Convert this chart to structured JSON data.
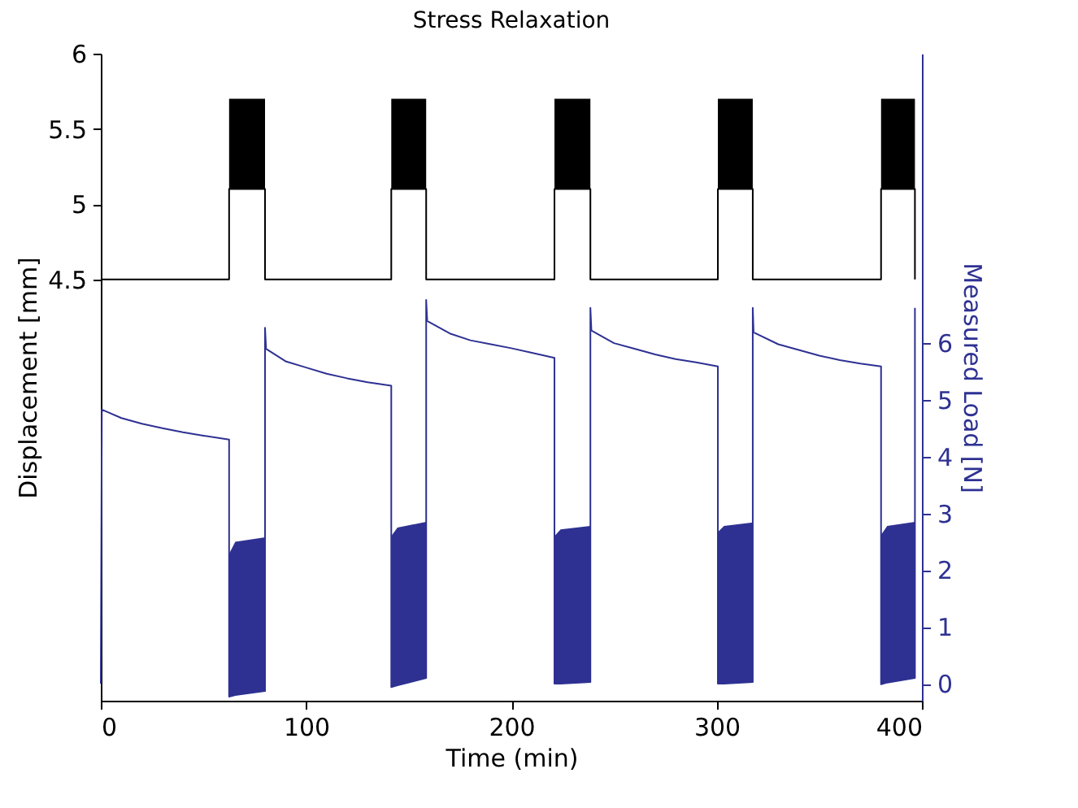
{
  "chart_data": {
    "type": "line",
    "title": "Stress Relaxation",
    "xlabel": "Time (min)",
    "ylabel": "Displacement [mm]",
    "y2label": "Measured Load [N]",
    "xlim": [
      0,
      400
    ],
    "xticks": [
      0,
      100,
      200,
      300,
      400
    ],
    "ylim": [
      1.7,
      6
    ],
    "yticks": [
      4.5,
      5,
      5.5,
      6
    ],
    "y2lim": [
      -0.3,
      11.1
    ],
    "y2ticks": [
      0,
      1,
      2,
      3,
      4,
      5,
      6
    ],
    "grid": false,
    "series": [
      {
        "color": "#000000",
        "x": [
          0,
          62.5,
          62.5,
          80,
          80,
          141.5,
          141.5,
          158.5,
          158.5,
          221,
          221,
          238.5,
          238.5,
          300.6,
          300.6,
          317.6,
          317.6,
          380.1,
          380.1,
          396.6,
          396.6
        ],
        "values": [
          4.5,
          4.5,
          5.1,
          5.1,
          4.5,
          4.5,
          5.1,
          5.1,
          4.5,
          4.5,
          5.1,
          5.1,
          4.5,
          4.5,
          5.1,
          5.1,
          4.5,
          4.5,
          5.1,
          5.1,
          4.5
        ],
        "lower": [
          null,
          null,
          5.1,
          5.1,
          null,
          null,
          5.1,
          5.1,
          null,
          null,
          5.1,
          5.1,
          null,
          null,
          5.1,
          5.1,
          null,
          null,
          5.1,
          5.1,
          null
        ],
        "upper": [
          null,
          null,
          5.7,
          5.7,
          null,
          null,
          5.7,
          5.7,
          null,
          null,
          5.7,
          5.7,
          null,
          null,
          5.7,
          5.7,
          null,
          null,
          5.7,
          5.7,
          null
        ]
      },
      {
        "color": "#2e3192",
        "axis": "y2",
        "x": [
          0,
          0.5,
          10,
          20,
          30,
          40,
          50,
          62.5,
          62.5,
          65.5,
          80,
          80,
          80.5,
          90,
          100,
          110,
          120,
          130,
          141.5,
          141.5,
          144.5,
          158.5,
          158.5,
          159,
          170,
          180,
          190,
          200,
          210,
          221,
          221,
          224,
          238.5,
          238.5,
          239,
          250,
          260,
          270,
          280,
          290,
          300.6,
          300.6,
          303.6,
          317.6,
          317.6,
          318,
          330,
          340,
          350,
          360,
          370,
          380.1,
          380.1,
          383.1,
          396.6,
          396.6
        ],
        "values": [
          0,
          4.83,
          4.68,
          4.58,
          4.5,
          4.43,
          4.37,
          4.3,
          -0.23,
          -0.2,
          -0.13,
          6.27,
          5.9,
          5.68,
          5.57,
          5.46,
          5.38,
          5.31,
          5.25,
          -0.06,
          -0.03,
          0.1,
          6.76,
          6.39,
          6.17,
          6.05,
          5.98,
          5.91,
          5.83,
          5.74,
          0,
          0,
          0.03,
          6.62,
          6.22,
          6.0,
          5.9,
          5.8,
          5.72,
          5.66,
          5.59,
          0,
          0,
          0.03,
          6.62,
          6.19,
          5.98,
          5.88,
          5.78,
          5.7,
          5.64,
          5.59,
          -0.01,
          0.02,
          0.1,
          6.62
        ],
        "lower": [
          null,
          null,
          null,
          null,
          null,
          null,
          null,
          null,
          -0.23,
          -0.2,
          -0.13,
          null,
          null,
          null,
          null,
          null,
          null,
          null,
          null,
          -0.06,
          -0.03,
          0.1,
          null,
          null,
          null,
          null,
          null,
          null,
          null,
          null,
          0,
          0,
          0.03,
          null,
          null,
          null,
          null,
          null,
          null,
          null,
          null,
          0,
          0,
          0.03,
          null,
          null,
          null,
          null,
          null,
          null,
          null,
          null,
          -0.01,
          0.02,
          0.1,
          null
        ],
        "upper": [
          null,
          null,
          null,
          null,
          null,
          null,
          null,
          null,
          2.29,
          2.5,
          2.58,
          null,
          null,
          null,
          null,
          null,
          null,
          null,
          null,
          2.6,
          2.75,
          2.85,
          null,
          null,
          null,
          null,
          null,
          null,
          null,
          null,
          2.6,
          2.72,
          2.78,
          null,
          null,
          null,
          null,
          null,
          null,
          null,
          null,
          2.67,
          2.78,
          2.84,
          null,
          null,
          null,
          null,
          null,
          null,
          null,
          null,
          2.62,
          2.78,
          2.85,
          null
        ]
      }
    ]
  }
}
